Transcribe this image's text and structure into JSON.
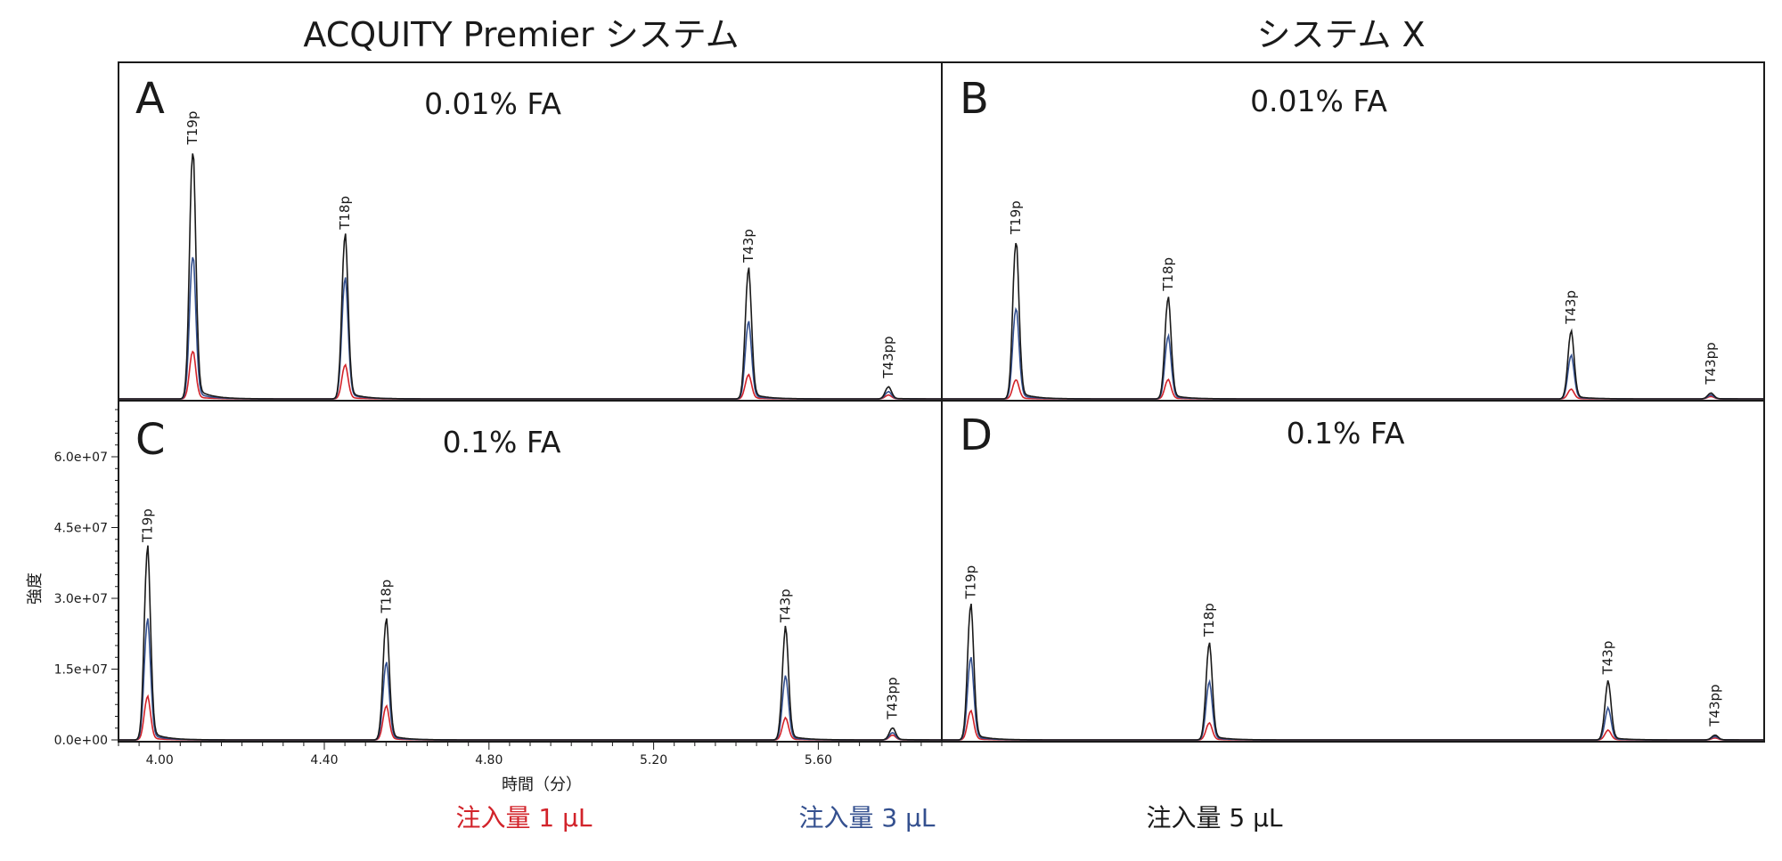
{
  "colors": {
    "inj1": "#d2232a",
    "inj3": "#34508f",
    "inj5": "#1a1a1a"
  },
  "titles": {
    "left": "ACQUITY Premier システム",
    "right": "システム X"
  },
  "axes": {
    "ylabel": "強度",
    "xlabel": "時間（分）",
    "yticks": [
      "6.0e+07",
      "4.5e+07",
      "3.0e+07",
      "1.5e+07",
      "0.0e+00"
    ],
    "xticks": [
      "4.00",
      "4.40",
      "4.80",
      "5.20",
      "5.60"
    ]
  },
  "legend": [
    "注入量 1 μL",
    "注入量 3 μL",
    "注入量 5 μL"
  ],
  "chart_data": [
    {
      "type": "line",
      "panel": "A",
      "condition": "0.01% FA",
      "system": "ACQUITY Premier システム",
      "peaks": [
        {
          "name": "T19p",
          "rt": 4.08,
          "heights": [
            10000000,
            30000000,
            52000000
          ]
        },
        {
          "name": "T18p",
          "rt": 4.45,
          "heights": [
            7000000,
            25000000,
            34000000
          ]
        },
        {
          "name": "T43p",
          "rt": 5.43,
          "heights": [
            5000000,
            16000000,
            27000000
          ]
        },
        {
          "name": "T43pp",
          "rt": 5.77,
          "heights": [
            800000,
            1500000,
            2500000
          ]
        }
      ]
    },
    {
      "type": "line",
      "panel": "B",
      "condition": "0.01% FA",
      "system": "システム X",
      "peaks": [
        {
          "name": "T19p",
          "rt": 4.08,
          "heights": [
            4000000,
            19000000,
            33000000
          ]
        },
        {
          "name": "T18p",
          "rt": 4.45,
          "heights": [
            4000000,
            13000000,
            21000000
          ]
        },
        {
          "name": "T43p",
          "rt": 5.43,
          "heights": [
            2000000,
            9000000,
            14000000
          ]
        },
        {
          "name": "T43pp",
          "rt": 5.77,
          "heights": [
            500000,
            800000,
            1200000
          ]
        }
      ]
    },
    {
      "type": "line",
      "panel": "C",
      "condition": "0.1% FA",
      "system": "ACQUITY Premier システム",
      "xlabel": "時間（分）",
      "ylabel": "強度",
      "ylim": [
        0,
        70000000
      ],
      "peaks": [
        {
          "name": "T19p",
          "rt": 3.97,
          "heights": [
            9000000,
            25000000,
            40000000
          ]
        },
        {
          "name": "T18p",
          "rt": 4.55,
          "heights": [
            7000000,
            16000000,
            25000000
          ]
        },
        {
          "name": "T43p",
          "rt": 5.52,
          "heights": [
            4500000,
            13000000,
            23000000
          ]
        },
        {
          "name": "T43pp",
          "rt": 5.78,
          "heights": [
            1000000,
            1500000,
            2500000
          ]
        }
      ]
    },
    {
      "type": "line",
      "panel": "D",
      "condition": "0.1% FA",
      "system": "システム X",
      "peaks": [
        {
          "name": "T19p",
          "rt": 3.97,
          "heights": [
            6000000,
            17000000,
            28000000
          ]
        },
        {
          "name": "T18p",
          "rt": 4.55,
          "heights": [
            3500000,
            12000000,
            20000000
          ]
        },
        {
          "name": "T43p",
          "rt": 5.52,
          "heights": [
            2000000,
            6500000,
            12000000
          ]
        },
        {
          "name": "T43pp",
          "rt": 5.78,
          "heights": [
            400000,
            700000,
            1000000
          ]
        }
      ]
    }
  ]
}
